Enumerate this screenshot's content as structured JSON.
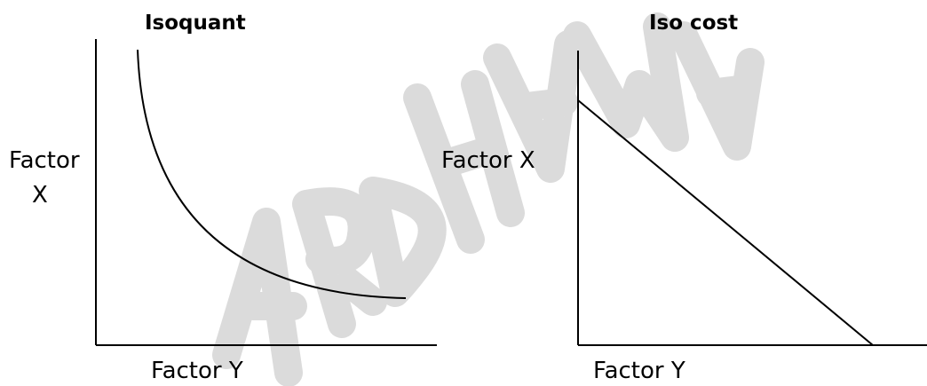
{
  "watermark": {
    "text": "VARDHAMAN",
    "color": "#c8c8c8"
  },
  "left_diagram": {
    "title": "Isoquant",
    "y_label_line1": "Factor",
    "y_label_line2": "X",
    "x_label": "Factor Y"
  },
  "right_diagram": {
    "title": "Iso cost",
    "y_label": "Factor X",
    "x_label": "Factor Y"
  }
}
